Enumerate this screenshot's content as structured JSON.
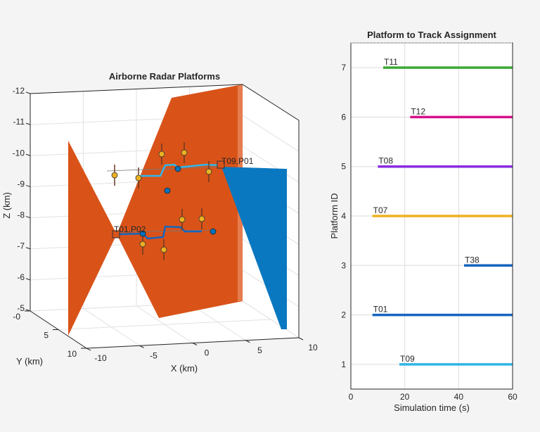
{
  "chart_data": [
    {
      "type": "scatter3d",
      "title": "Airborne Radar Platforms",
      "xlabel": "X (km)",
      "ylabel": "Y (km)",
      "zlabel": "Z (km)",
      "xticks": [
        "-10",
        "-5",
        "0",
        "5",
        "10"
      ],
      "yticks": [
        "-0",
        "5",
        "10"
      ],
      "zticks": [
        "-12",
        "-11",
        "-10",
        "-9",
        "-8",
        "-7",
        "-6",
        "-5"
      ],
      "xlim": [
        -10,
        10
      ],
      "ylim": [
        0,
        10
      ],
      "zlim": [
        -12,
        -5
      ],
      "annotations": [
        "T09,P01",
        "T01,P02"
      ],
      "colors": {
        "beam_orange": "#d95319",
        "beam_blue": "#0072bd",
        "track_light": "#2fb6ea",
        "track_dark": "#1565c0",
        "target": "#edb120"
      }
    },
    {
      "type": "bar",
      "title": "Platform to Track Assignment",
      "xlabel": "Simulation time (s)",
      "ylabel": "Platform ID",
      "xlim": [
        0,
        60
      ],
      "ylim": [
        0.5,
        7.5
      ],
      "xticks": [
        "0",
        "20",
        "40",
        "60"
      ],
      "yticks": [
        "1",
        "2",
        "3",
        "4",
        "5",
        "6",
        "7"
      ],
      "series": [
        {
          "platform": 1,
          "track": "T09",
          "start": 18,
          "end": 60,
          "color": "#2fb6ea"
        },
        {
          "platform": 2,
          "track": "T01",
          "start": 8,
          "end": 60,
          "color": "#1565c0"
        },
        {
          "platform": 3,
          "track": "T38",
          "start": 42,
          "end": 60,
          "color": "#1565c0"
        },
        {
          "platform": 4,
          "track": "T07",
          "start": 8,
          "end": 60,
          "color": "#edb120"
        },
        {
          "platform": 5,
          "track": "T08",
          "start": 10,
          "end": 60,
          "color": "#8a2be2"
        },
        {
          "platform": 6,
          "track": "T12",
          "start": 22,
          "end": 60,
          "color": "#d6118a"
        },
        {
          "platform": 7,
          "track": "T11",
          "start": 12,
          "end": 60,
          "color": "#3aa935"
        }
      ]
    }
  ]
}
